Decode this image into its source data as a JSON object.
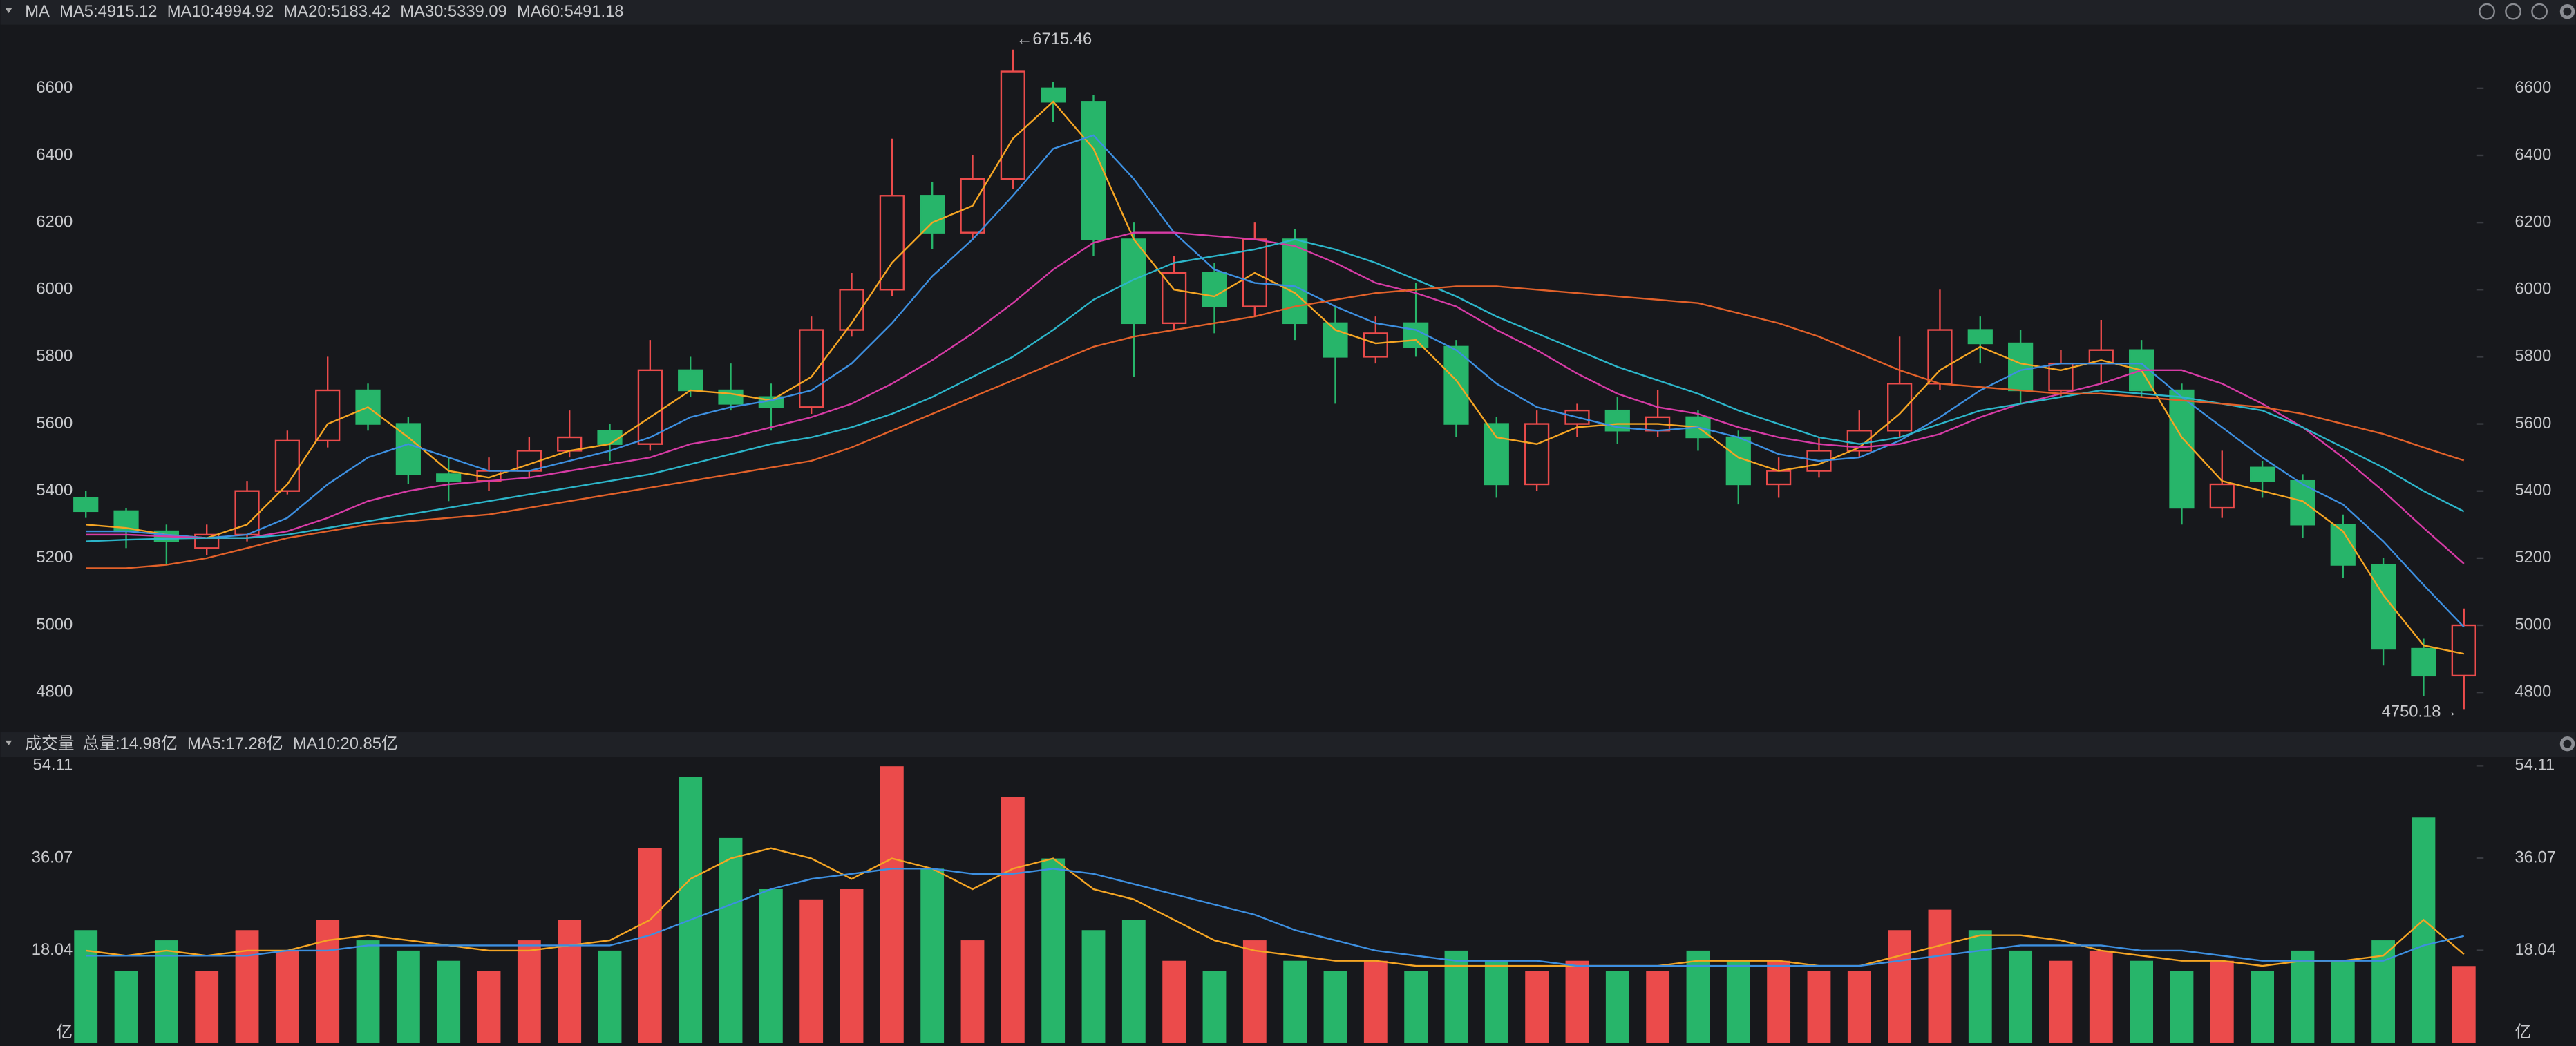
{
  "chart_data": [
    {
      "type": "candlestick",
      "name": "MA",
      "up_color": "#eb4b4b",
      "down_color": "#27b56a",
      "ylim": [
        4720,
        6780
      ],
      "yticks": [
        4800,
        5000,
        5200,
        5400,
        5600,
        5800,
        6000,
        6200,
        6400,
        6600
      ],
      "open": [
        5380,
        5340,
        5280,
        5230,
        5270,
        5400,
        5550,
        5700,
        5600,
        5450,
        5430,
        5460,
        5520,
        5580,
        5540,
        5760,
        5700,
        5680,
        5650,
        5880,
        6000,
        6280,
        6170,
        6330,
        6600,
        6560,
        6150,
        5900,
        6050,
        5950,
        6150,
        5900,
        5800,
        5900,
        5830,
        5600,
        5420,
        5600,
        5640,
        5580,
        5620,
        5560,
        5420,
        5460,
        5520,
        5580,
        5720,
        5880,
        5840,
        5700,
        5780,
        5820,
        5700,
        5350,
        5470,
        5430,
        5300,
        5180,
        4930,
        4850
      ],
      "high": [
        5400,
        5350,
        5300,
        5300,
        5430,
        5580,
        5800,
        5720,
        5620,
        5500,
        5500,
        5560,
        5640,
        5600,
        5850,
        5800,
        5780,
        5720,
        5920,
        6050,
        6450,
        6320,
        6400,
        6715.46,
        6620,
        6580,
        6200,
        6100,
        6080,
        6200,
        6180,
        5950,
        5920,
        6020,
        5850,
        5620,
        5640,
        5660,
        5680,
        5700,
        5640,
        5580,
        5500,
        5560,
        5640,
        5860,
        6000,
        5920,
        5880,
        5820,
        5910,
        5850,
        5720,
        5520,
        5490,
        5450,
        5330,
        5200,
        4960,
        5050
      ],
      "low": [
        5320,
        5230,
        5180,
        5210,
        5250,
        5390,
        5530,
        5580,
        5420,
        5370,
        5400,
        5440,
        5500,
        5490,
        5520,
        5680,
        5640,
        5580,
        5630,
        5860,
        5980,
        6120,
        6150,
        6300,
        6500,
        6100,
        5740,
        5880,
        5870,
        5920,
        5850,
        5660,
        5780,
        5800,
        5560,
        5380,
        5400,
        5560,
        5540,
        5560,
        5520,
        5360,
        5380,
        5440,
        5500,
        5560,
        5700,
        5780,
        5660,
        5680,
        5720,
        5680,
        5300,
        5320,
        5380,
        5260,
        5140,
        4880,
        4790,
        4750.18
      ],
      "close": [
        5340,
        5280,
        5250,
        5270,
        5400,
        5550,
        5700,
        5600,
        5450,
        5430,
        5460,
        5520,
        5560,
        5540,
        5760,
        5700,
        5660,
        5650,
        5880,
        6000,
        6280,
        6170,
        6330,
        6650,
        6560,
        6150,
        5900,
        6050,
        5950,
        6150,
        5900,
        5800,
        5870,
        5830,
        5600,
        5420,
        5600,
        5640,
        5580,
        5620,
        5560,
        5420,
        5460,
        5520,
        5580,
        5720,
        5880,
        5840,
        5700,
        5780,
        5820,
        5700,
        5350,
        5420,
        5430,
        5300,
        5180,
        4930,
        4850,
        5000
      ],
      "max_label": "←6715.46",
      "min_label": "4750.18→",
      "series": [
        {
          "label": "MA5:4915.12",
          "color": "#f5a524",
          "values": [
            5300,
            5290,
            5270,
            5260,
            5300,
            5420,
            5600,
            5650,
            5560,
            5460,
            5440,
            5480,
            5520,
            5540,
            5620,
            5700,
            5690,
            5670,
            5740,
            5900,
            6080,
            6200,
            6250,
            6450,
            6560,
            6420,
            6150,
            6000,
            5980,
            6050,
            5990,
            5880,
            5840,
            5850,
            5730,
            5560,
            5540,
            5590,
            5600,
            5600,
            5590,
            5500,
            5460,
            5480,
            5530,
            5630,
            5760,
            5830,
            5780,
            5760,
            5790,
            5760,
            5560,
            5430,
            5400,
            5370,
            5280,
            5090,
            4940,
            4915.12
          ]
        },
        {
          "label": "MA10:4994.92",
          "color": "#3d8fe0",
          "values": [
            5280,
            5280,
            5270,
            5260,
            5270,
            5320,
            5420,
            5500,
            5540,
            5500,
            5460,
            5460,
            5490,
            5520,
            5560,
            5620,
            5650,
            5670,
            5700,
            5780,
            5900,
            6040,
            6150,
            6280,
            6420,
            6460,
            6330,
            6170,
            6060,
            6020,
            6010,
            5950,
            5900,
            5880,
            5820,
            5720,
            5650,
            5620,
            5590,
            5580,
            5590,
            5560,
            5510,
            5490,
            5500,
            5550,
            5620,
            5700,
            5760,
            5780,
            5780,
            5780,
            5680,
            5590,
            5500,
            5420,
            5360,
            5250,
            5120,
            4994.92
          ]
        },
        {
          "label": "MA20:5183.42",
          "color": "#d63ba5",
          "values": [
            5270,
            5270,
            5265,
            5260,
            5260,
            5280,
            5320,
            5370,
            5400,
            5420,
            5430,
            5440,
            5460,
            5480,
            5500,
            5540,
            5560,
            5590,
            5620,
            5660,
            5720,
            5790,
            5870,
            5960,
            6060,
            6140,
            6170,
            6170,
            6160,
            6150,
            6130,
            6080,
            6020,
            5990,
            5950,
            5880,
            5820,
            5750,
            5690,
            5650,
            5630,
            5590,
            5560,
            5540,
            5530,
            5540,
            5570,
            5620,
            5660,
            5690,
            5720,
            5760,
            5760,
            5720,
            5660,
            5590,
            5500,
            5400,
            5290,
            5183.42
          ]
        },
        {
          "label": "MA30:5339.09",
          "color": "#2cb5c9",
          "values": [
            5250,
            5255,
            5258,
            5260,
            5260,
            5270,
            5290,
            5310,
            5330,
            5350,
            5370,
            5390,
            5410,
            5430,
            5450,
            5480,
            5510,
            5540,
            5560,
            5590,
            5630,
            5680,
            5740,
            5800,
            5880,
            5970,
            6030,
            6080,
            6100,
            6120,
            6150,
            6120,
            6080,
            6030,
            5980,
            5920,
            5870,
            5820,
            5770,
            5730,
            5690,
            5640,
            5600,
            5560,
            5540,
            5560,
            5600,
            5640,
            5660,
            5680,
            5700,
            5690,
            5680,
            5660,
            5640,
            5590,
            5530,
            5470,
            5400,
            5339.09
          ]
        },
        {
          "label": "MA60:5491.18",
          "color": "#e2612a",
          "values": [
            5170,
            5170,
            5180,
            5200,
            5230,
            5260,
            5280,
            5300,
            5310,
            5320,
            5330,
            5350,
            5370,
            5390,
            5410,
            5430,
            5450,
            5470,
            5490,
            5530,
            5580,
            5630,
            5680,
            5730,
            5780,
            5830,
            5860,
            5880,
            5900,
            5920,
            5950,
            5970,
            5990,
            6000,
            6010,
            6010,
            6000,
            5990,
            5980,
            5970,
            5960,
            5930,
            5900,
            5860,
            5810,
            5760,
            5720,
            5710,
            5700,
            5690,
            5690,
            5680,
            5670,
            5660,
            5650,
            5630,
            5600,
            5570,
            5530,
            5491.18
          ]
        }
      ]
    },
    {
      "type": "bar",
      "name": "成交量",
      "unit": "亿",
      "ylim": [
        0,
        55.5
      ],
      "yticks": [
        18.04,
        36.07,
        54.11
      ],
      "total_label": "总量:14.98亿",
      "total_color": "#eb4b4b",
      "values": [
        22,
        14,
        20,
        14,
        22,
        18,
        24,
        20,
        18,
        16,
        14,
        20,
        24,
        18,
        38,
        52,
        40,
        30,
        28,
        30,
        54,
        34,
        20,
        48,
        36,
        22,
        24,
        16,
        14,
        20,
        16,
        14,
        16,
        14,
        18,
        16,
        14,
        16,
        14,
        14,
        18,
        16,
        16,
        14,
        14,
        22,
        26,
        22,
        18,
        16,
        18,
        16,
        14,
        16,
        14,
        18,
        16,
        20,
        44,
        14.98
      ],
      "series": [
        {
          "label": "MA5:17.28亿",
          "color": "#f5a524",
          "values": [
            18,
            17,
            18,
            17,
            18,
            18,
            20,
            21,
            20,
            19,
            18,
            18,
            19,
            20,
            24,
            32,
            36,
            38,
            36,
            32,
            36,
            34,
            30,
            34,
            36,
            30,
            28,
            24,
            20,
            18,
            17,
            16,
            16,
            15,
            15,
            15,
            15,
            15,
            15,
            15,
            16,
            16,
            16,
            15,
            15,
            17,
            19,
            21,
            21,
            20,
            18,
            17,
            16,
            16,
            15,
            16,
            16,
            17,
            24,
            17.28
          ]
        },
        {
          "label": "MA10:20.85亿",
          "color": "#3d8fe0",
          "values": [
            17,
            17,
            17,
            17,
            17,
            18,
            18,
            19,
            19,
            19,
            19,
            19,
            19,
            19,
            21,
            24,
            27,
            30,
            32,
            33,
            34,
            34,
            33,
            33,
            34,
            33,
            31,
            29,
            27,
            25,
            22,
            20,
            18,
            17,
            16,
            16,
            16,
            15,
            15,
            15,
            15,
            15,
            15,
            15,
            15,
            16,
            17,
            18,
            19,
            19,
            19,
            18,
            18,
            17,
            16,
            16,
            16,
            16,
            19,
            20.85
          ]
        }
      ]
    }
  ]
}
